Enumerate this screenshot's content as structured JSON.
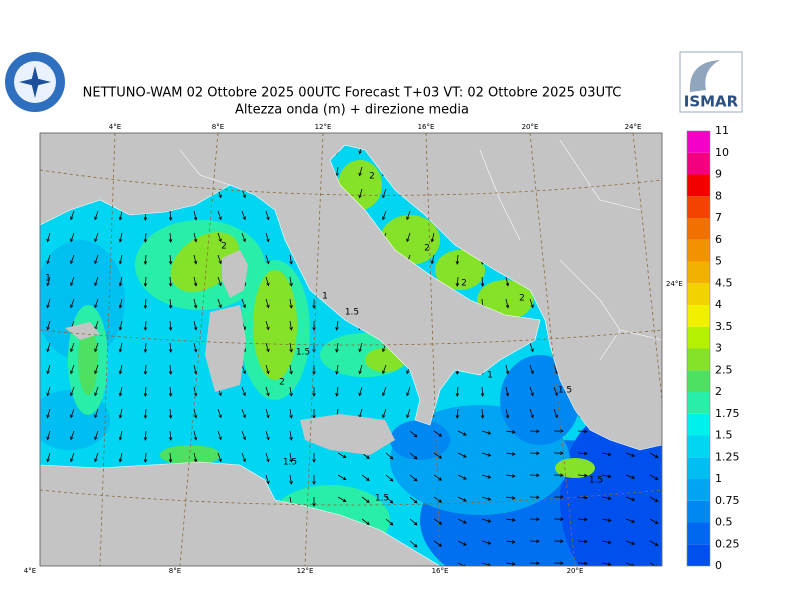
{
  "header": {
    "title": "NETTUNO-WAM  02  Ottobre  2025 00UTC Forecast T+03 VT: 02  Ottobre  2025 03UTC",
    "subtitle": "Altezza onda (m) + direzione media",
    "logo_text": "ISMAR"
  },
  "map": {
    "top_labels": [
      "4°E",
      "8°E",
      "12°E",
      "16°E",
      "20°E",
      "24°E"
    ],
    "bottom_labels": [
      "4°E",
      "8°E",
      "12°E",
      "16°E",
      "20°E"
    ],
    "right_label": "24°E",
    "contour_labels": [
      "1",
      "2",
      "1.5",
      "2",
      "2",
      "1",
      "2",
      "2",
      "1.5",
      "2",
      "1.5",
      "1.5",
      "1.5",
      "1",
      "1.5"
    ]
  },
  "colorbar": {
    "labels": [
      "0",
      "0.25",
      "0.5",
      "0.75",
      "1",
      "1.25",
      "1.5",
      "1.75",
      "2",
      "2.5",
      "3",
      "3.5",
      "4",
      "4.5",
      "5",
      "6",
      "7",
      "8",
      "9",
      "10",
      "11"
    ],
    "colors": [
      "#0050ee",
      "#0068f0",
      "#0088f2",
      "#00a4f2",
      "#00bef2",
      "#00d6f2",
      "#00f0ee",
      "#28eea8",
      "#4ee060",
      "#86e228",
      "#b4f000",
      "#f0f000",
      "#f2d200",
      "#f2b000",
      "#f29200",
      "#f27000",
      "#f24400",
      "#f20000",
      "#f20080",
      "#f200c8"
    ]
  }
}
